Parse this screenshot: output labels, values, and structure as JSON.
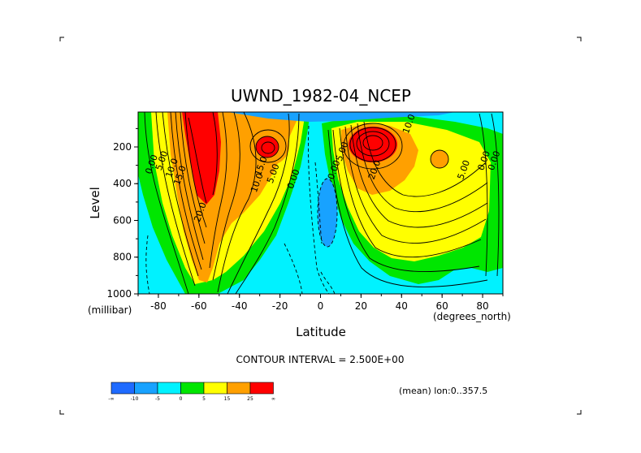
{
  "chart_data": {
    "type": "contour",
    "title": "UWND_1982-04_NCEP",
    "xlabel": "Latitude",
    "ylabel": "Level",
    "x_unit": "(degrees_north)",
    "y_unit": "(millibar)",
    "xlim": [
      -90,
      90
    ],
    "ylim": [
      1000,
      10
    ],
    "x_ticks": [
      "-80",
      "-60",
      "-40",
      "-20",
      "0",
      "20",
      "40",
      "60",
      "80"
    ],
    "y_ticks": [
      "200",
      "400",
      "600",
      "800",
      "1000"
    ],
    "contour_interval_text": "CONTOUR INTERVAL = 2.500E+00",
    "footer_text": "(mean) lon:0..357.5",
    "colorbar": {
      "bounds": [
        "-∞",
        "-10",
        "-5",
        "0",
        "5",
        "15",
        "25",
        "∞"
      ],
      "colors": [
        "#1f6bff",
        "#18a2ff",
        "#00f2ff",
        "#00e600",
        "#ffff00",
        "#ffa000",
        "#ff0000"
      ]
    },
    "contour_labels": [
      {
        "text": "0.00",
        "lat": -82,
        "lev": 300
      },
      {
        "text": "5.00",
        "lat": -77,
        "lev": 280
      },
      {
        "text": "10.0",
        "lat": -72,
        "lev": 320
      },
      {
        "text": "15.0",
        "lat": -68,
        "lev": 360
      },
      {
        "text": "20.0",
        "lat": -58,
        "lev": 560
      },
      {
        "text": "15.0",
        "lat": -28,
        "lev": 310
      },
      {
        "text": "10.0",
        "lat": -30,
        "lev": 400
      },
      {
        "text": "5.00",
        "lat": -22,
        "lev": 350
      },
      {
        "text": "0.00",
        "lat": -12,
        "lev": 380
      },
      {
        "text": "10.0",
        "lat": 45,
        "lev": 80
      },
      {
        "text": "5.00",
        "lat": 12,
        "lev": 230
      },
      {
        "text": "0.00",
        "lat": 8,
        "lev": 330
      },
      {
        "text": "20.0",
        "lat": 28,
        "lev": 330
      },
      {
        "text": "5.00",
        "lat": 72,
        "lev": 330
      },
      {
        "text": "0.00",
        "lat": 82,
        "lev": 280
      },
      {
        "text": "0.00",
        "lat": 87,
        "lev": 280
      }
    ]
  }
}
